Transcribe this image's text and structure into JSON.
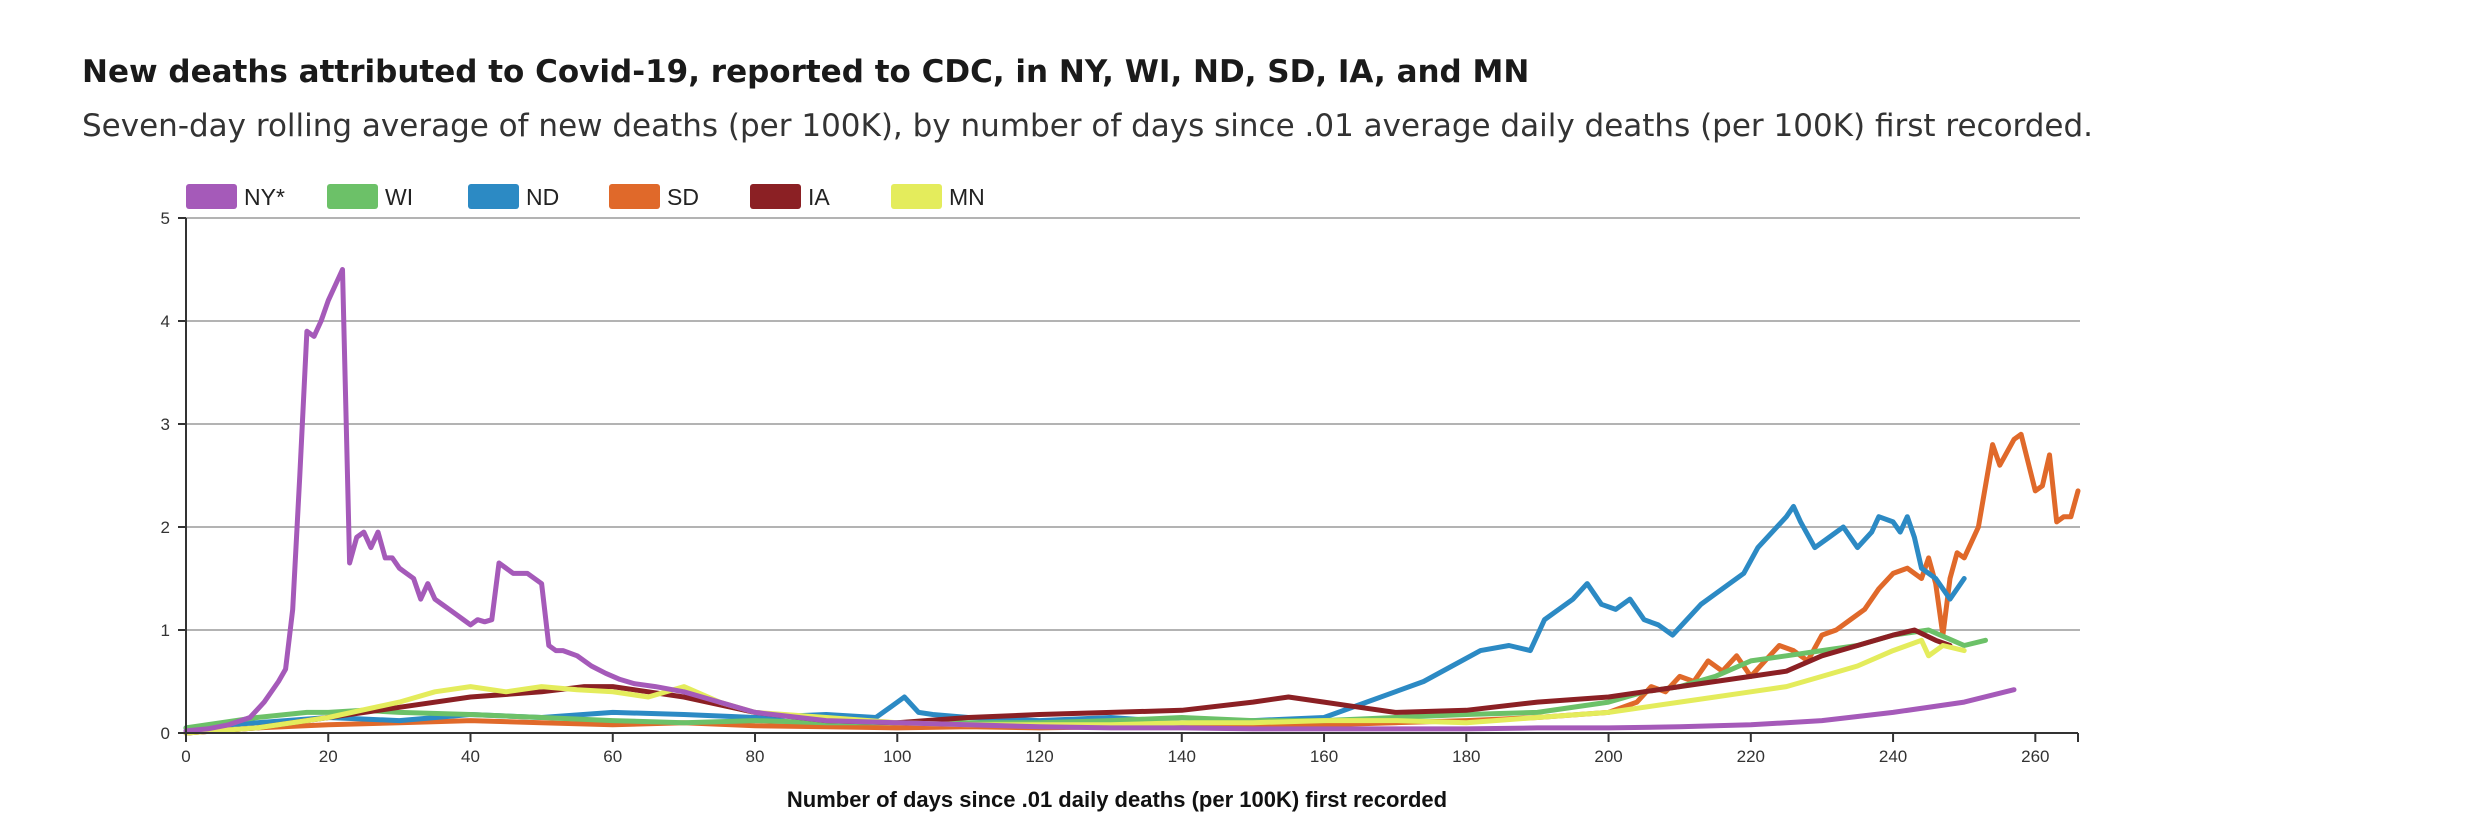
{
  "header": {
    "title": "New deaths attributed to Covid-19, reported to CDC, in NY, WI, ND, SD, IA, and MN",
    "subtitle": "Seven-day rolling average of new deaths (per 100K), by number of days since .01 average daily deaths (per 100K) first recorded."
  },
  "chart_data": {
    "type": "line",
    "title": "New deaths attributed to Covid-19, reported to CDC, in NY, WI, ND, SD, IA, and MN",
    "subtitle": "Seven-day rolling average of new deaths (per 100K), by number of days since .01 average daily deaths (per 100K) first recorded.",
    "xlabel": "Number of days since .01 daily deaths (per 100K) first recorded",
    "ylabel": "",
    "xlim": [
      0,
      266
    ],
    "ylim": [
      0,
      5
    ],
    "xticks": [
      0,
      20,
      40,
      60,
      80,
      100,
      120,
      140,
      160,
      180,
      200,
      220,
      240,
      260
    ],
    "yticks": [
      0,
      1,
      2,
      3,
      4,
      5
    ],
    "grid": "horizontal",
    "legend_position": "top-left",
    "series": [
      {
        "name": "SD",
        "color": "#e0692a",
        "x": [
          0,
          10,
          20,
          30,
          40,
          50,
          60,
          70,
          80,
          90,
          100,
          110,
          120,
          130,
          140,
          150,
          160,
          170,
          180,
          190,
          200,
          204,
          206,
          208,
          210,
          212,
          214,
          216,
          218,
          220,
          222,
          224,
          226,
          228,
          230,
          232,
          234,
          236,
          238,
          240,
          242,
          244,
          245,
          246,
          247,
          248,
          249,
          250,
          252,
          254,
          255,
          257,
          258,
          260,
          261,
          262,
          263,
          264,
          265,
          266
        ],
        "y": [
          0.0,
          0.05,
          0.08,
          0.1,
          0.12,
          0.1,
          0.08,
          0.1,
          0.07,
          0.06,
          0.05,
          0.06,
          0.05,
          0.06,
          0.07,
          0.06,
          0.08,
          0.1,
          0.12,
          0.15,
          0.2,
          0.3,
          0.45,
          0.4,
          0.55,
          0.5,
          0.7,
          0.6,
          0.75,
          0.55,
          0.7,
          0.85,
          0.8,
          0.7,
          0.95,
          1.0,
          1.1,
          1.2,
          1.4,
          1.55,
          1.6,
          1.5,
          1.7,
          1.45,
          0.95,
          1.5,
          1.75,
          1.7,
          2.0,
          2.8,
          2.6,
          2.85,
          2.9,
          2.35,
          2.4,
          2.7,
          2.05,
          2.1,
          2.1,
          2.35
        ]
      },
      {
        "name": "ND",
        "color": "#2c8ac4",
        "x": [
          0,
          10,
          20,
          30,
          40,
          50,
          60,
          70,
          80,
          90,
          97,
          99,
          101,
          103,
          105,
          110,
          120,
          130,
          140,
          150,
          160,
          166,
          170,
          174,
          178,
          182,
          186,
          189,
          191,
          193,
          195,
          197,
          199,
          201,
          203,
          205,
          207,
          209,
          211,
          213,
          215,
          217,
          219,
          221,
          223,
          225,
          226,
          227,
          229,
          231,
          233,
          235,
          237,
          238,
          240,
          241,
          242,
          243,
          244,
          246,
          248,
          250
        ],
        "y": [
          0.05,
          0.1,
          0.15,
          0.12,
          0.18,
          0.15,
          0.2,
          0.18,
          0.15,
          0.18,
          0.15,
          0.25,
          0.35,
          0.2,
          0.18,
          0.15,
          0.12,
          0.15,
          0.1,
          0.12,
          0.15,
          0.3,
          0.4,
          0.5,
          0.65,
          0.8,
          0.85,
          0.8,
          1.1,
          1.2,
          1.3,
          1.45,
          1.25,
          1.2,
          1.3,
          1.1,
          1.05,
          0.95,
          1.1,
          1.25,
          1.35,
          1.45,
          1.55,
          1.8,
          1.95,
          2.1,
          2.2,
          2.05,
          1.8,
          1.9,
          2.0,
          1.8,
          1.95,
          2.1,
          2.05,
          1.95,
          2.1,
          1.9,
          1.6,
          1.5,
          1.3,
          1.5
        ]
      },
      {
        "name": "WI",
        "color": "#6cc168",
        "x": [
          0,
          10,
          17,
          20,
          25,
          30,
          40,
          50,
          60,
          70,
          80,
          90,
          100,
          110,
          120,
          130,
          140,
          150,
          160,
          170,
          180,
          190,
          200,
          205,
          210,
          215,
          220,
          225,
          230,
          235,
          240,
          245,
          250,
          253
        ],
        "y": [
          0.05,
          0.15,
          0.2,
          0.2,
          0.22,
          0.2,
          0.18,
          0.15,
          0.12,
          0.1,
          0.12,
          0.1,
          0.1,
          0.1,
          0.1,
          0.12,
          0.15,
          0.12,
          0.12,
          0.15,
          0.18,
          0.2,
          0.3,
          0.4,
          0.45,
          0.55,
          0.7,
          0.75,
          0.8,
          0.85,
          0.95,
          1.0,
          0.85,
          0.9
        ]
      },
      {
        "name": "IA",
        "color": "#8b2024",
        "x": [
          0,
          10,
          20,
          30,
          40,
          50,
          56,
          60,
          65,
          70,
          80,
          90,
          100,
          110,
          120,
          130,
          140,
          150,
          155,
          160,
          165,
          170,
          180,
          190,
          200,
          210,
          215,
          220,
          225,
          230,
          235,
          240,
          243,
          246,
          248
        ],
        "y": [
          0.0,
          0.05,
          0.15,
          0.25,
          0.35,
          0.4,
          0.45,
          0.45,
          0.4,
          0.35,
          0.2,
          0.12,
          0.1,
          0.15,
          0.18,
          0.2,
          0.22,
          0.3,
          0.35,
          0.3,
          0.25,
          0.2,
          0.22,
          0.3,
          0.35,
          0.45,
          0.5,
          0.55,
          0.6,
          0.75,
          0.85,
          0.95,
          1.0,
          0.9,
          0.85
        ]
      },
      {
        "name": "MN",
        "color": "#e4ec5c",
        "x": [
          0,
          10,
          20,
          30,
          35,
          40,
          45,
          50,
          55,
          60,
          65,
          70,
          75,
          80,
          90,
          100,
          110,
          120,
          130,
          140,
          150,
          160,
          170,
          180,
          190,
          200,
          210,
          215,
          220,
          225,
          230,
          235,
          240,
          244,
          245,
          247,
          250
        ],
        "y": [
          0.0,
          0.05,
          0.15,
          0.3,
          0.4,
          0.45,
          0.4,
          0.45,
          0.42,
          0.4,
          0.35,
          0.45,
          0.3,
          0.2,
          0.15,
          0.1,
          0.08,
          0.08,
          0.08,
          0.1,
          0.1,
          0.12,
          0.12,
          0.1,
          0.15,
          0.2,
          0.3,
          0.35,
          0.4,
          0.45,
          0.55,
          0.65,
          0.8,
          0.9,
          0.75,
          0.85,
          0.8
        ]
      },
      {
        "name": "NY*",
        "color": "#a55ab9",
        "x": [
          0,
          3,
          6,
          9,
          11,
          13,
          14,
          15,
          16,
          17,
          18,
          19,
          20,
          21,
          22,
          23,
          24,
          25,
          26,
          27,
          28,
          29,
          30,
          31,
          32,
          33,
          34,
          35,
          36,
          37,
          38,
          39,
          40,
          41,
          42,
          43,
          44,
          45,
          46,
          47,
          48,
          49,
          50,
          51,
          52,
          53,
          55,
          57,
          59,
          61,
          63,
          66,
          70,
          75,
          80,
          90,
          100,
          110,
          120,
          130,
          140,
          150,
          160,
          170,
          180,
          190,
          200,
          210,
          220,
          230,
          240,
          250,
          257
        ],
        "y": [
          0.02,
          0.04,
          0.08,
          0.15,
          0.3,
          0.5,
          0.62,
          1.2,
          2.5,
          3.9,
          3.85,
          4.0,
          4.2,
          4.35,
          4.5,
          1.65,
          1.9,
          1.95,
          1.8,
          1.95,
          1.7,
          1.7,
          1.6,
          1.55,
          1.5,
          1.3,
          1.45,
          1.3,
          1.25,
          1.2,
          1.15,
          1.1,
          1.05,
          1.1,
          1.08,
          1.1,
          1.65,
          1.6,
          1.55,
          1.55,
          1.55,
          1.5,
          1.45,
          0.85,
          0.8,
          0.8,
          0.75,
          0.65,
          0.58,
          0.52,
          0.48,
          0.45,
          0.4,
          0.3,
          0.2,
          0.12,
          0.1,
          0.08,
          0.06,
          0.05,
          0.05,
          0.04,
          0.04,
          0.04,
          0.04,
          0.05,
          0.05,
          0.06,
          0.08,
          0.12,
          0.2,
          0.3,
          0.42
        ]
      }
    ]
  }
}
